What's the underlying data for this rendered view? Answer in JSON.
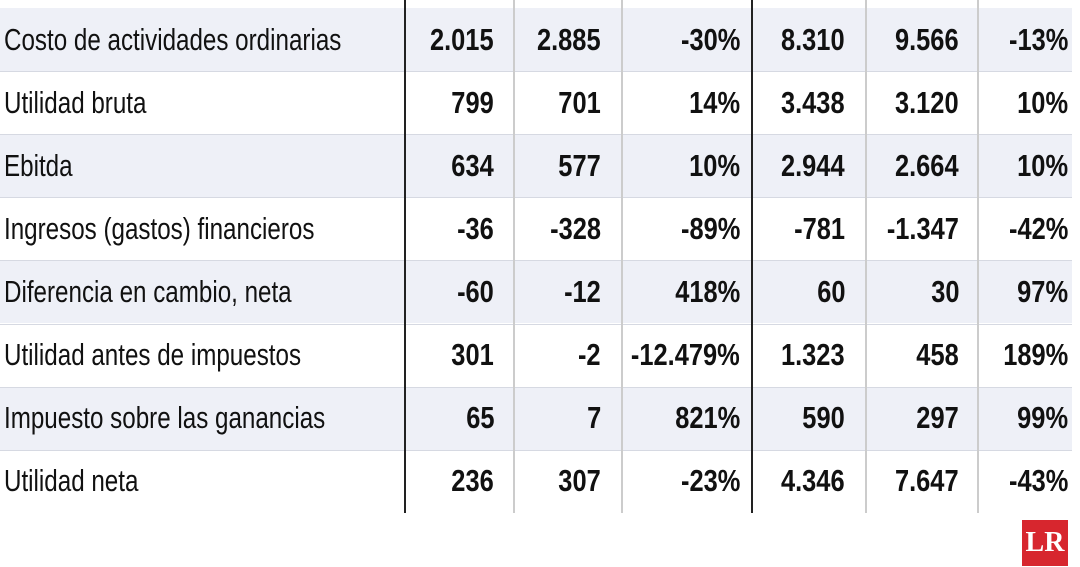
{
  "table": {
    "rows": [
      [
        "Costo de actividades ordinarias",
        "2.015",
        "2.885",
        "-30%",
        "8.310",
        "9.566",
        "-13%"
      ],
      [
        "Utilidad bruta",
        "799",
        "701",
        "14%",
        "3.438",
        "3.120",
        "10%"
      ],
      [
        "Ebitda",
        "634",
        "577",
        "10%",
        "2.944",
        "2.664",
        "10%"
      ],
      [
        "Ingresos (gastos) financieros",
        "-36",
        "-328",
        "-89%",
        "-781",
        "-1.347",
        "-42%"
      ],
      [
        "Diferencia en cambio, neta",
        "-60",
        "-12",
        "418%",
        "60",
        "30",
        "97%"
      ],
      [
        "Utilidad antes de impuestos",
        "301",
        "-2",
        "-12.479%",
        "1.323",
        "458",
        "189%"
      ],
      [
        "Impuesto sobre las ganancias",
        "65",
        "7",
        "821%",
        "590",
        "297",
        "99%"
      ],
      [
        "Utilidad neta",
        "236",
        "307",
        "-23%",
        "4.346",
        "7.647",
        "-43%"
      ]
    ]
  },
  "logo": {
    "text": "LR"
  }
}
